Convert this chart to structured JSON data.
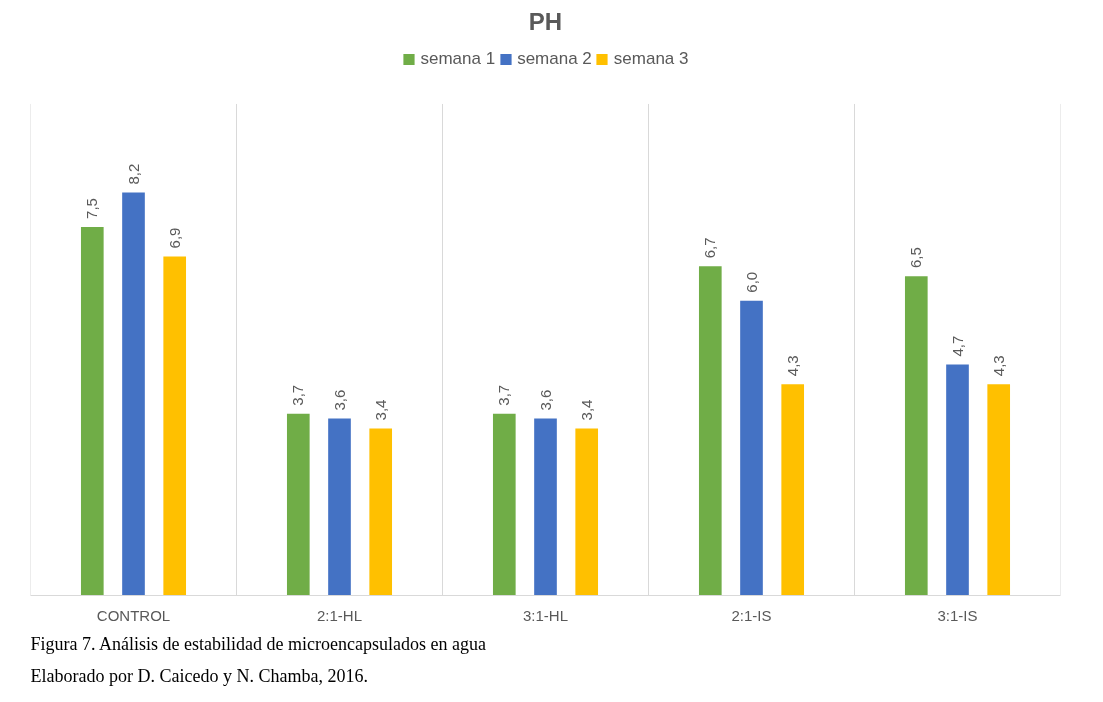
{
  "chart_data": {
    "type": "bar",
    "title": "PH",
    "categories": [
      "CONTROL",
      "2:1-HL",
      "3:1-HL",
      "2:1-IS",
      "3:1-IS"
    ],
    "series": [
      {
        "name": "semana 1",
        "color": "#70ad47",
        "values": [
          7.5,
          3.7,
          3.7,
          6.7,
          6.5
        ],
        "value_labels": [
          "7,5",
          "3,7",
          "3,7",
          "6,7",
          "6,5"
        ]
      },
      {
        "name": "semana 2",
        "color": "#4472c4",
        "values": [
          8.2,
          3.6,
          3.6,
          6.0,
          4.7
        ],
        "value_labels": [
          "8,2",
          "3,6",
          "3,6",
          "6,0",
          "4,7"
        ]
      },
      {
        "name": "semana 3",
        "color": "#ffc000",
        "values": [
          6.9,
          3.4,
          3.4,
          4.3,
          4.3
        ],
        "value_labels": [
          "6,9",
          "3,4",
          "3,4",
          "4,3",
          "4,3"
        ]
      }
    ],
    "grid": "x",
    "legend": "top",
    "annotations": [
      "Figura  7. Análisis de estabilidad de microencapsulados en agua",
      "Elaborado por D. Caicedo y N. Chamba, 2016."
    ]
  }
}
